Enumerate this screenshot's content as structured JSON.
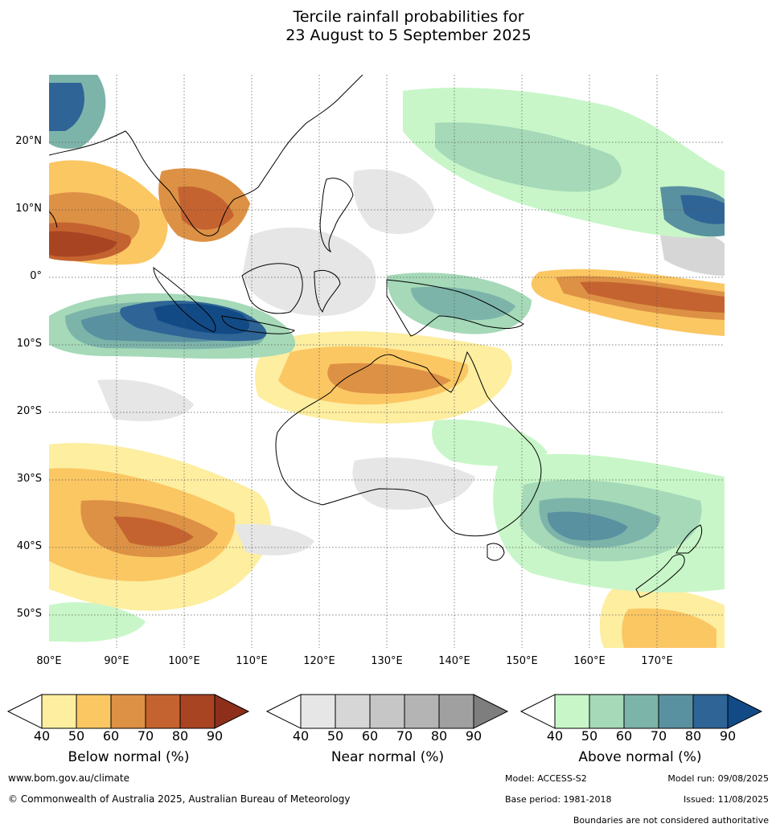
{
  "title": {
    "line1": "Tercile rainfall probabilities for",
    "line2": "23 August to 5 September 2025"
  },
  "map": {
    "lon_range": [
      80,
      180
    ],
    "lat_range": [
      -55,
      30
    ],
    "lat_labels": [
      "20°N",
      "10°N",
      "0°",
      "10°S",
      "20°S",
      "30°S",
      "40°S",
      "50°S"
    ],
    "lat_values": [
      20,
      10,
      0,
      -10,
      -20,
      -30,
      -40,
      -50
    ],
    "lon_labels": [
      "80°E",
      "90°E",
      "100°E",
      "110°E",
      "120°E",
      "130°E",
      "140°E",
      "150°E",
      "160°E",
      "170°E"
    ],
    "lon_values": [
      80,
      90,
      100,
      110,
      120,
      130,
      140,
      150,
      160,
      170
    ]
  },
  "legend": {
    "ticks": [
      "40",
      "50",
      "60",
      "70",
      "80",
      "90"
    ],
    "below": {
      "title": "Below normal (%)",
      "colors": [
        "#fdeea0",
        "#fbc763",
        "#dd9144",
        "#c56330",
        "#a94422",
        "#8e2f1b"
      ]
    },
    "near": {
      "title": "Near normal (%)",
      "colors": [
        "#e6e6e6",
        "#d6d6d6",
        "#c6c6c6",
        "#b4b4b4",
        "#a0a0a0",
        "#7e7e7e"
      ]
    },
    "above": {
      "title": "Above normal (%)",
      "colors": [
        "#c8f6c8",
        "#a5d9b8",
        "#7db4aa",
        "#5a91a0",
        "#2e6496",
        "#124a86"
      ]
    }
  },
  "footer": {
    "website": "www.bom.gov.au/climate",
    "copyright": "© Commonwealth of Australia 2025, Australian Bureau of Meteorology",
    "model": "Model: ACCESS-S2",
    "model_run": "Model run: 09/08/2025",
    "base_period": "Base period: 1981-2018",
    "issued": "Issued: 11/08/2025",
    "disclaimer": "Boundaries are not considered authoritative"
  }
}
